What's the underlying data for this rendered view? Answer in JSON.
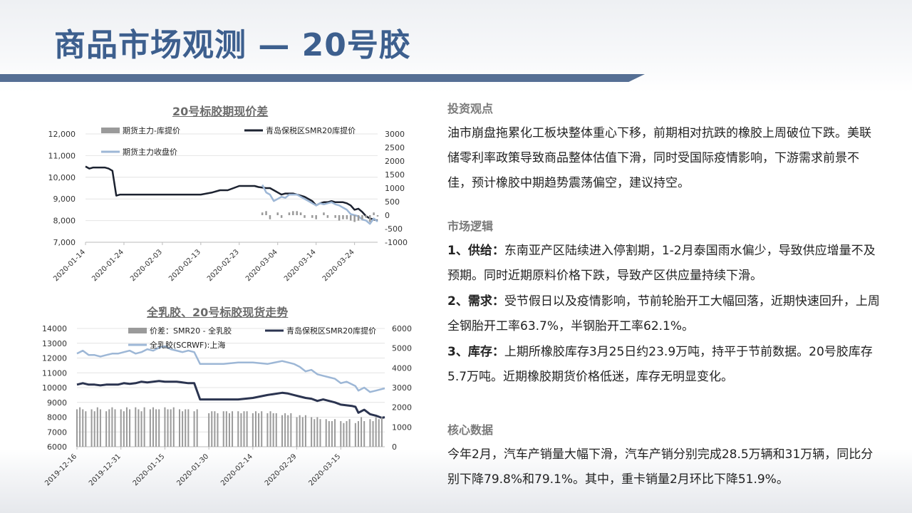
{
  "title": "商品市场观测 — 20号胶",
  "chart_data": [
    {
      "type": "bar+line",
      "title": "20号标胶期现价差",
      "legend": [
        "期货主力-库提价",
        "青岛保税区SMR20库提价",
        "期货主力收盘价"
      ],
      "y_left_ticks": [
        "12,000",
        "11,000",
        "10,000",
        "9,000",
        "8,000",
        "7,000"
      ],
      "y_left_range": [
        7000,
        12000
      ],
      "y_right_ticks": [
        "3000",
        "2500",
        "2000",
        "1500",
        "1000",
        "500",
        "0",
        "-500",
        "-1000"
      ],
      "y_right_range": [
        -1000,
        3000
      ],
      "x_ticks": [
        "2020-01-14",
        "2020-01-24",
        "2020-02-03",
        "2020-02-13",
        "2020-02-23",
        "2020-03-04",
        "2020-03-14",
        "2020-03-24"
      ],
      "x_range_days": [
        0,
        76
      ],
      "series": [
        {
          "name": "青岛保税区SMR20库提价",
          "x": [
            0,
            1,
            2,
            4,
            5,
            6,
            7,
            8,
            9,
            10,
            11,
            12,
            20,
            30,
            33,
            35,
            37,
            40,
            42,
            44,
            45,
            47,
            48,
            49,
            50,
            51,
            52,
            53,
            54,
            55,
            56,
            57,
            58,
            59,
            60,
            61,
            62,
            63,
            64,
            65,
            66,
            67,
            68,
            69,
            70,
            71,
            72,
            73,
            74,
            75,
            76
          ],
          "values": [
            10500,
            10400,
            10450,
            10450,
            10450,
            10400,
            10300,
            9150,
            9200,
            9200,
            9200,
            9200,
            9200,
            9200,
            9300,
            9400,
            9400,
            9600,
            9600,
            9600,
            9550,
            9500,
            9500,
            9400,
            9300,
            9200,
            9250,
            9250,
            9250,
            9200,
            9150,
            9100,
            9000,
            8900,
            8700,
            8800,
            8850,
            8850,
            8900,
            8850,
            8850,
            8850,
            8800,
            8700,
            8500,
            8550,
            8400,
            8200,
            8100,
            8050,
            8000
          ]
        },
        {
          "name": "期货主力收盘价",
          "x": [
            46,
            47,
            48,
            49,
            50,
            51,
            52,
            53,
            54,
            55,
            56,
            57,
            58,
            59,
            60,
            61,
            62,
            63,
            64,
            65,
            66,
            67,
            68,
            69,
            70,
            71,
            72,
            73,
            74,
            75,
            76
          ],
          "values": [
            9650,
            9300,
            9200,
            8900,
            9000,
            9100,
            9050,
            9200,
            9200,
            9200,
            9100,
            9000,
            8900,
            8800,
            8700,
            8800,
            8750,
            8800,
            8850,
            8750,
            8700,
            8600,
            8500,
            8300,
            8250,
            8200,
            8050,
            8000,
            7850,
            8100,
            7950
          ]
        },
        {
          "name": "期货主力-库提价",
          "x": [
            46,
            47,
            48,
            50,
            51,
            53,
            54,
            55,
            56,
            57,
            59,
            60,
            62,
            63,
            65,
            66,
            67,
            68,
            69,
            70,
            71,
            72,
            73,
            74,
            75,
            76
          ],
          "values": [
            100,
            150,
            -150,
            100,
            -100,
            100,
            150,
            150,
            100,
            -100,
            -100,
            -150,
            100,
            -100,
            -100,
            -200,
            -150,
            -150,
            -200,
            -250,
            -200,
            -150,
            -100,
            -250,
            100,
            -50
          ]
        }
      ]
    },
    {
      "type": "bar+line",
      "title": "全乳胶、20号标胶现货走势",
      "legend": [
        "价差：SMR20 - 全乳胶",
        "青岛保税区SMR20库提价",
        "全乳胶(SCRWF):上海"
      ],
      "y_left_ticks": [
        "14000",
        "13000",
        "12000",
        "11000",
        "10000",
        "9000",
        "8000",
        "7000",
        "6000"
      ],
      "y_left_range": [
        6000,
        14000
      ],
      "y_right_ticks": [
        "6000",
        "5000",
        "4000",
        "3000",
        "2000",
        "1000",
        "0"
      ],
      "y_right_range": [
        0,
        6000
      ],
      "x_ticks": [
        "2019-12-16",
        "2019-12-31",
        "2020-01-15",
        "2020-01-30",
        "2020-02-14",
        "2020-02-29",
        "2020-03-15"
      ],
      "x_range_days": [
        0,
        105
      ],
      "series": [
        {
          "name": "全乳胶(SCRWF):上海",
          "x": [
            0,
            2,
            4,
            6,
            8,
            10,
            12,
            14,
            16,
            18,
            20,
            22,
            24,
            26,
            28,
            30,
            32,
            34,
            36,
            38,
            40,
            42,
            44,
            46,
            50,
            55,
            60,
            65,
            70,
            72,
            74,
            76,
            78,
            80,
            82,
            84,
            86,
            88,
            90,
            92,
            94,
            95,
            96,
            98,
            100,
            102,
            104,
            105
          ],
          "values": [
            12300,
            12500,
            12200,
            12200,
            12100,
            12200,
            12300,
            12300,
            12400,
            12500,
            12300,
            12400,
            12600,
            12500,
            12700,
            12800,
            12600,
            12500,
            12400,
            12500,
            12400,
            11600,
            11600,
            11600,
            11600,
            11700,
            11700,
            11600,
            11800,
            11700,
            11600,
            11400,
            11100,
            11200,
            10900,
            10800,
            10700,
            10600,
            10300,
            10400,
            10200,
            10100,
            9800,
            10000,
            9700,
            9800,
            9900,
            9950
          ]
        },
        {
          "name": "青岛保税区SMR20库提价",
          "x": [
            0,
            2,
            4,
            6,
            8,
            10,
            12,
            14,
            16,
            18,
            20,
            22,
            24,
            26,
            28,
            30,
            32,
            34,
            36,
            38,
            40,
            42,
            44,
            46,
            50,
            55,
            60,
            65,
            70,
            72,
            74,
            76,
            78,
            80,
            82,
            84,
            86,
            88,
            90,
            92,
            94,
            95,
            96,
            98,
            100,
            102,
            104,
            105
          ],
          "values": [
            10200,
            10300,
            10200,
            10200,
            10150,
            10200,
            10200,
            10200,
            10300,
            10250,
            10300,
            10400,
            10350,
            10400,
            10450,
            10400,
            10400,
            10400,
            10350,
            10300,
            10300,
            9200,
            9200,
            9200,
            9200,
            9200,
            9300,
            9500,
            9650,
            9600,
            9500,
            9400,
            9300,
            9250,
            9100,
            9200,
            9100,
            9000,
            8850,
            8800,
            8750,
            8700,
            8300,
            8500,
            8200,
            8100,
            7950,
            8000
          ]
        },
        {
          "name": "价差：SMR20 - 全乳胶",
          "x": [
            0,
            1,
            2,
            3,
            5,
            6,
            7,
            8,
            10,
            11,
            12,
            13,
            15,
            16,
            17,
            18,
            20,
            21,
            22,
            23,
            25,
            26,
            27,
            28,
            30,
            31,
            32,
            33,
            35,
            36,
            37,
            38,
            40,
            41,
            45,
            46,
            47,
            48,
            50,
            51,
            52,
            53,
            55,
            56,
            57,
            58,
            60,
            61,
            62,
            63,
            65,
            66,
            67,
            68,
            70,
            71,
            72,
            73,
            75,
            76,
            77,
            78,
            80,
            81,
            82,
            83,
            85,
            86,
            87,
            88,
            90,
            91,
            92,
            93,
            95,
            96,
            97,
            98,
            100,
            101,
            102,
            103,
            104
          ],
          "values": [
            1900,
            2000,
            1900,
            1800,
            1900,
            1800,
            2000,
            1900,
            1800,
            1900,
            2000,
            1900,
            1900,
            1800,
            2000,
            1900,
            2000,
            1900,
            1800,
            2000,
            1900,
            2000,
            1900,
            1900,
            2000,
            1900,
            1900,
            2000,
            1900,
            1800,
            1900,
            1900,
            1800,
            1900,
            1700,
            1800,
            1800,
            1700,
            1800,
            1800,
            1700,
            1800,
            1800,
            1700,
            1800,
            1800,
            1700,
            1800,
            1700,
            1800,
            1700,
            1800,
            1700,
            1700,
            1600,
            1700,
            1600,
            1700,
            1500,
            1600,
            1500,
            1600,
            1500,
            1400,
            1500,
            1400,
            1400,
            1300,
            1300,
            1400,
            1300,
            1200,
            1300,
            1400,
            1200,
            1300,
            1500,
            1300,
            1400,
            1300,
            1500,
            1400,
            1500
          ]
        }
      ]
    }
  ],
  "right": {
    "s1_head": "投资观点",
    "s1_text": "油市崩盘拖累化工板块整体重心下移，前期相对抗跌的橡胶上周破位下跌。美联储零利率政策导致商品整体估值下滑，同时受国际疫情影响，下游需求前景不佳，预计橡胶中期趋势震荡偏空，建议持空。",
    "s2_head": "市场逻辑",
    "s2_items": [
      {
        "label": "1、供给：",
        "text": "东南亚产区陆续进入停割期，1-2月泰国雨水偏少，导致供应增量不及预期。同时近期原料价格下跌，导致产区供应量持续下滑。"
      },
      {
        "label": "2、需求：",
        "text": "受节假日以及疫情影响，节前轮胎开工大幅回落，近期快速回升，上周全钢胎开工率63.7%，半钢胎开工率62.1%。"
      },
      {
        "label": "3、库存：",
        "text": "上期所橡胶库存3月25日约23.9万吨，持平于节前数据。20号胶库存5.7万吨。近期橡胶期货价格低迷，库存无明显变化。"
      }
    ],
    "s3_head": "核心数据",
    "s3_text": "今年2月，汽车产销量大幅下滑，汽车产销分别完成28.5万辆和31万辆，同比分别下降79.8%和79.1%。其中，重卡销量2月环比下降51.9%。"
  },
  "colors": {
    "title": "#3d5f8e",
    "title_bar": "#556f94",
    "line_dark": "#1c2230",
    "line_dark2": "#2b3450",
    "line_light": "#9db7d6",
    "bar_gray": "#9a9a9a"
  }
}
